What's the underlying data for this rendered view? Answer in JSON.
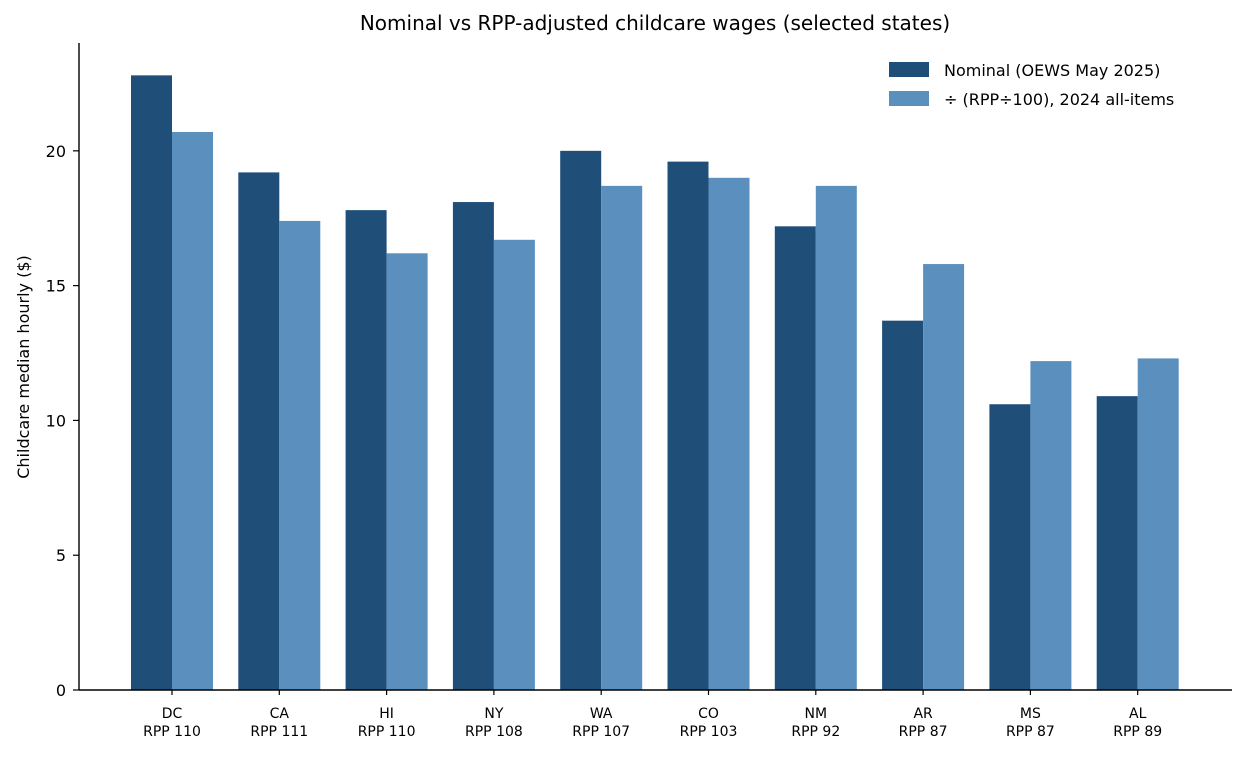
{
  "chart_data": {
    "type": "bar",
    "title": "Nominal vs RPP-adjusted childcare wages (selected states)",
    "xlabel": "",
    "ylabel": "Childcare median hourly ($)",
    "categories": [
      "DC",
      "CA",
      "HI",
      "NY",
      "WA",
      "CO",
      "NM",
      "AR",
      "MS",
      "AL"
    ],
    "category_sublabels": [
      "RPP 110",
      "RPP 111",
      "RPP 110",
      "RPP 108",
      "RPP 107",
      "RPP 103",
      "RPP 92",
      "RPP 87",
      "RPP 87",
      "RPP 89"
    ],
    "series": [
      {
        "name": "Nominal (OEWS May 2025)",
        "color": "#1f4e79",
        "values": [
          22.8,
          19.2,
          17.8,
          18.1,
          20.0,
          19.6,
          17.2,
          13.7,
          10.6,
          10.9
        ]
      },
      {
        "name": "÷ (RPP÷100), 2024 all-items",
        "color": "#5b8fbe",
        "values": [
          20.7,
          17.4,
          16.2,
          16.7,
          18.7,
          19.0,
          18.7,
          15.8,
          12.2,
          12.3
        ]
      }
    ],
    "ylim": [
      0,
      24
    ],
    "yticks": [
      0,
      5,
      10,
      15,
      20
    ],
    "grid": false,
    "legend_position": "top-right"
  }
}
